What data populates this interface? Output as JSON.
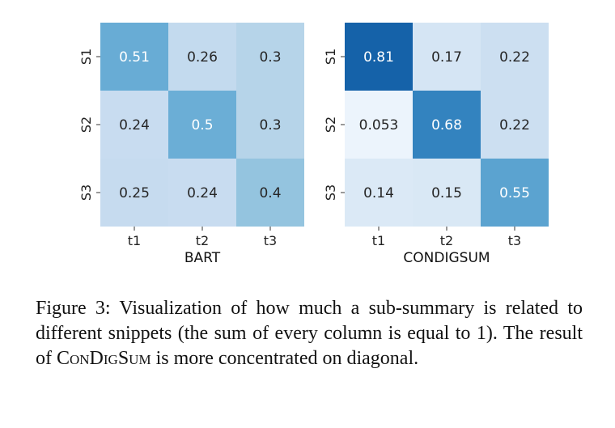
{
  "chart_data": [
    {
      "type": "heatmap",
      "title": "",
      "xlabel": "BART",
      "ylabel": "",
      "x_categories": [
        "t1",
        "t2",
        "t3"
      ],
      "y_categories": [
        "S1",
        "S2",
        "S3"
      ],
      "values": [
        [
          0.51,
          0.26,
          0.3
        ],
        [
          0.24,
          0.5,
          0.3
        ],
        [
          0.25,
          0.24,
          0.4
        ]
      ],
      "value_labels": [
        [
          "0.51",
          "0.26",
          "0.3"
        ],
        [
          "0.24",
          "0.5",
          "0.3"
        ],
        [
          "0.25",
          "0.24",
          "0.4"
        ]
      ],
      "colormap": "Blues",
      "vmin": 0,
      "vmax": 1,
      "colorbar": false
    },
    {
      "type": "heatmap",
      "title": "",
      "xlabel": "CONDIGSUM",
      "ylabel": "",
      "x_categories": [
        "t1",
        "t2",
        "t3"
      ],
      "y_categories": [
        "S1",
        "S2",
        "S3"
      ],
      "values": [
        [
          0.81,
          0.17,
          0.22
        ],
        [
          0.053,
          0.68,
          0.22
        ],
        [
          0.14,
          0.15,
          0.55
        ]
      ],
      "value_labels": [
        [
          "0.81",
          "0.17",
          "0.22"
        ],
        [
          "0.053",
          "0.68",
          "0.22"
        ],
        [
          "0.14",
          "0.15",
          "0.55"
        ]
      ],
      "colormap": "Blues",
      "vmin": 0,
      "vmax": 1,
      "colorbar": false
    }
  ],
  "caption": {
    "part1": "Figure 3: Visualization of how much a sub-summary is related to different snippets (the sum of every column is equal to 1). The result of ",
    "model_name": "ConDigSum",
    "part2": " is more concentrated on diagonal."
  }
}
